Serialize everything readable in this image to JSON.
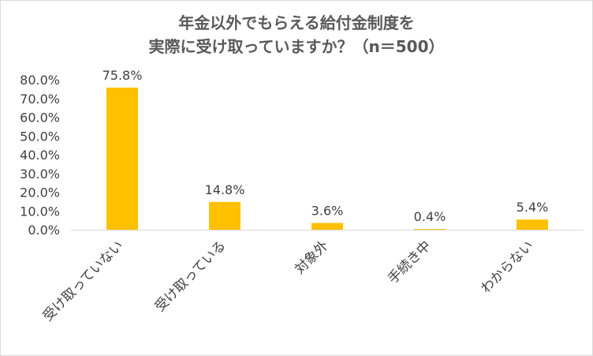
{
  "chart_data": {
    "type": "bar",
    "title_lines": [
      "年金以外でもらえる給付金制度を",
      "実際に受け取っていますか？（n＝500）"
    ],
    "categories": [
      "受け取っていない",
      "受け取っている",
      "対象外",
      "手続き中",
      "わからない"
    ],
    "values": [
      75.8,
      14.8,
      3.6,
      0.4,
      5.4
    ],
    "data_labels": [
      "75.8%",
      "14.8%",
      "3.6%",
      "0.4%",
      "5.4%"
    ],
    "ylim": [
      0,
      80
    ],
    "yticks": [
      "0.0%",
      "10.0%",
      "20.0%",
      "30.0%",
      "40.0%",
      "50.0%",
      "60.0%",
      "70.0%",
      "80.0%"
    ],
    "bar_color": "#FFC000",
    "grid": false,
    "legend": "none"
  }
}
